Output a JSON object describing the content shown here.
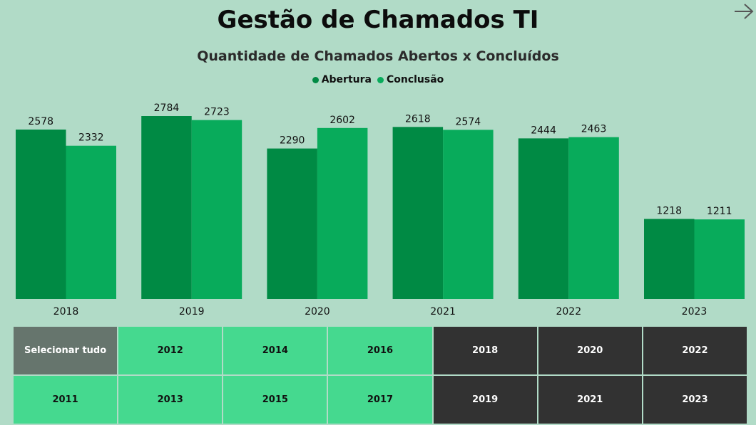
{
  "header": {
    "title": "Gestão de Chamados TI"
  },
  "colors": {
    "abertura": "#008a44",
    "conclusao": "#08ab5b"
  },
  "chart_data": {
    "type": "bar",
    "title": "Quantidade de Chamados Abertos x Concluídos",
    "categories": [
      "2018",
      "2019",
      "2020",
      "2021",
      "2022",
      "2023"
    ],
    "series": [
      {
        "name": "Abertura",
        "values": [
          2578,
          2784,
          2290,
          2618,
          2444,
          1218
        ]
      },
      {
        "name": "Conclusão",
        "values": [
          2332,
          2723,
          2602,
          2574,
          2463,
          1211
        ]
      }
    ],
    "ylim": [
      0,
      2800
    ],
    "legend": "top-center",
    "grid": false
  },
  "slicer": {
    "buttons": [
      {
        "label": "Selecionar tudo",
        "state": "all"
      },
      {
        "label": "2012",
        "state": "off"
      },
      {
        "label": "2014",
        "state": "off"
      },
      {
        "label": "2016",
        "state": "off"
      },
      {
        "label": "2018",
        "state": "on"
      },
      {
        "label": "2020",
        "state": "on"
      },
      {
        "label": "2022",
        "state": "on"
      },
      {
        "label": "2011",
        "state": "off"
      },
      {
        "label": "2013",
        "state": "off"
      },
      {
        "label": "2015",
        "state": "off"
      },
      {
        "label": "2017",
        "state": "off"
      },
      {
        "label": "2019",
        "state": "on"
      },
      {
        "label": "2021",
        "state": "on"
      },
      {
        "label": "2023",
        "state": "on"
      }
    ]
  }
}
